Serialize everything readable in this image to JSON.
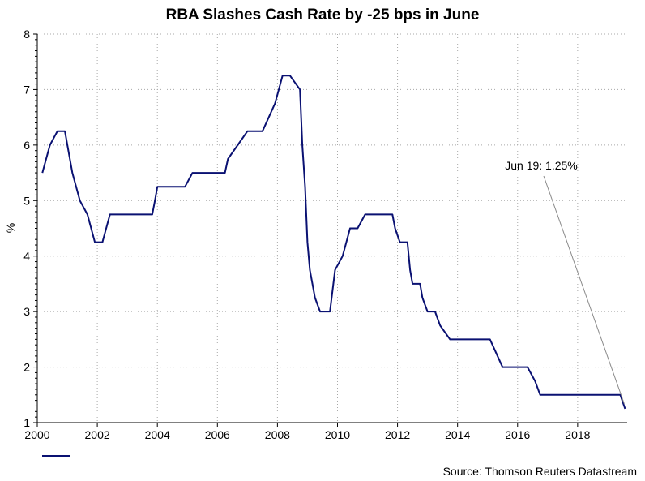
{
  "chart_data": {
    "type": "line",
    "title": "RBA Slashes Cash Rate by -25 bps in June",
    "xlabel": "",
    "ylabel": "%",
    "xlim": [
      2000.0,
      2019.65
    ],
    "ylim": [
      1,
      8
    ],
    "x_ticks": [
      2000,
      2002,
      2004,
      2006,
      2008,
      2010,
      2012,
      2014,
      2016,
      2018
    ],
    "x_tick_labels": [
      "2000",
      "2002",
      "2004",
      "2006",
      "2008",
      "2010",
      "2012",
      "2014",
      "2016",
      "2018"
    ],
    "y_ticks": [
      1,
      2,
      3,
      4,
      5,
      6,
      7,
      8
    ],
    "y_tick_labels": [
      "1",
      "2",
      "3",
      "4",
      "5",
      "6",
      "7",
      "8"
    ],
    "grid": true,
    "series": [
      {
        "name": "",
        "color": "#0a1172",
        "points": [
          [
            2000.17,
            5.5
          ],
          [
            2000.42,
            6.0
          ],
          [
            2000.67,
            6.25
          ],
          [
            2000.92,
            6.25
          ],
          [
            2001.17,
            5.5
          ],
          [
            2001.42,
            5.0
          ],
          [
            2001.67,
            4.75
          ],
          [
            2001.92,
            4.25
          ],
          [
            2002.17,
            4.25
          ],
          [
            2002.42,
            4.75
          ],
          [
            2002.83,
            4.75
          ],
          [
            2003.83,
            4.75
          ],
          [
            2003.92,
            5.0
          ],
          [
            2004.0,
            5.25
          ],
          [
            2004.92,
            5.25
          ],
          [
            2005.17,
            5.5
          ],
          [
            2006.25,
            5.5
          ],
          [
            2006.35,
            5.75
          ],
          [
            2007.0,
            6.25
          ],
          [
            2007.5,
            6.25
          ],
          [
            2007.92,
            6.75
          ],
          [
            2008.17,
            7.25
          ],
          [
            2008.42,
            7.25
          ],
          [
            2008.75,
            7.0
          ],
          [
            2008.83,
            6.0
          ],
          [
            2008.92,
            5.25
          ],
          [
            2009.0,
            4.25
          ],
          [
            2009.08,
            3.75
          ],
          [
            2009.25,
            3.25
          ],
          [
            2009.42,
            3.0
          ],
          [
            2009.75,
            3.0
          ],
          [
            2009.92,
            3.75
          ],
          [
            2010.17,
            4.0
          ],
          [
            2010.42,
            4.5
          ],
          [
            2010.67,
            4.5
          ],
          [
            2010.92,
            4.75
          ],
          [
            2011.83,
            4.75
          ],
          [
            2011.92,
            4.5
          ],
          [
            2012.08,
            4.25
          ],
          [
            2012.33,
            4.25
          ],
          [
            2012.42,
            3.75
          ],
          [
            2012.5,
            3.5
          ],
          [
            2012.75,
            3.5
          ],
          [
            2012.83,
            3.25
          ],
          [
            2013.0,
            3.0
          ],
          [
            2013.25,
            3.0
          ],
          [
            2013.42,
            2.75
          ],
          [
            2013.75,
            2.5
          ],
          [
            2015.08,
            2.5
          ],
          [
            2015.5,
            2.0
          ],
          [
            2016.33,
            2.0
          ],
          [
            2016.58,
            1.75
          ],
          [
            2016.75,
            1.5
          ],
          [
            2019.42,
            1.5
          ],
          [
            2019.58,
            1.25
          ]
        ]
      }
    ],
    "annotations": [
      {
        "text": "Jun 19: 1.25%",
        "x": 2019.58,
        "y": 1.25
      }
    ],
    "legend": {
      "entries": [
        ""
      ],
      "placement": "bottom-left"
    },
    "source": "Source: Thomson Reuters Datastream"
  }
}
